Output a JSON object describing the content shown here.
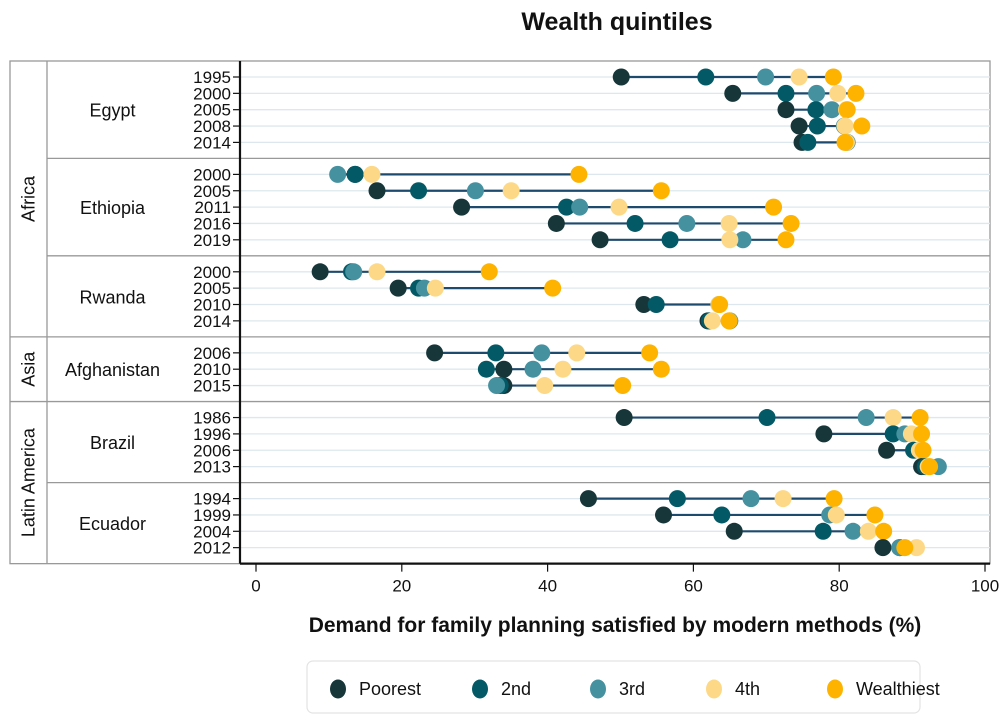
{
  "chart_data": {
    "type": "scatter",
    "subtype": "dumbbell",
    "title": "Wealth quintiles",
    "xlabel": "Demand for family planning satisfied by modern methods (%)",
    "ylabel": "",
    "xlim": [
      0,
      100
    ],
    "xticks": [
      0,
      20,
      40,
      60,
      80,
      100
    ],
    "grid": true,
    "legend_position": "bottom",
    "series_names": [
      "Poorest",
      "2nd",
      "3rd",
      "4th",
      "Wealthiest"
    ],
    "series_colors": [
      "#16363a",
      "#035a66",
      "#4591a0",
      "#fdd886",
      "#fdb300"
    ],
    "connector_color": "#1e4a6e",
    "regions": [
      {
        "name": "Africa",
        "countries": [
          {
            "name": "Egypt",
            "surveys": [
              {
                "year": "1995",
                "values": [
                  50.1,
                  61.7,
                  69.9,
                  74.5,
                  79.2
                ]
              },
              {
                "year": "2000",
                "values": [
                  65.4,
                  72.7,
                  76.9,
                  79.8,
                  82.3
                ]
              },
              {
                "year": "2005",
                "values": [
                  72.7,
                  76.8,
                  79.0,
                  81.0,
                  81.1
                ]
              },
              {
                "year": "2008",
                "values": [
                  74.5,
                  77.0,
                  80.7,
                  80.8,
                  83.1
                ]
              },
              {
                "year": "2014",
                "values": [
                  74.9,
                  75.7,
                  81.1,
                  81.0,
                  80.8
                ]
              }
            ]
          },
          {
            "name": "Ethiopia",
            "surveys": [
              {
                "year": "2000",
                "values": [
                  13.6,
                  13.6,
                  11.2,
                  15.9,
                  44.3
                ]
              },
              {
                "year": "2005",
                "values": [
                  16.6,
                  22.3,
                  30.1,
                  35.0,
                  55.6
                ]
              },
              {
                "year": "2011",
                "values": [
                  28.2,
                  42.6,
                  44.4,
                  49.8,
                  71.0
                ]
              },
              {
                "year": "2016",
                "values": [
                  41.2,
                  52.0,
                  59.1,
                  64.9,
                  73.4
                ]
              },
              {
                "year": "2019",
                "values": [
                  47.2,
                  56.8,
                  66.8,
                  65.0,
                  72.7
                ]
              }
            ]
          },
          {
            "name": "Rwanda",
            "surveys": [
              {
                "year": "2000",
                "values": [
                  8.8,
                  13.1,
                  13.4,
                  16.6,
                  32.0
                ]
              },
              {
                "year": "2005",
                "values": [
                  19.5,
                  22.3,
                  23.1,
                  24.6,
                  40.7
                ]
              },
              {
                "year": "2010",
                "values": [
                  53.2,
                  54.9,
                  63.5,
                  63.5,
                  63.6
                ]
              },
              {
                "year": "2014",
                "values": [
                  62.0,
                  62.2,
                  65.0,
                  62.6,
                  64.9
                ]
              }
            ]
          }
        ]
      },
      {
        "name": "Asia",
        "countries": [
          {
            "name": "Afghanistan",
            "surveys": [
              {
                "year": "2006",
                "values": [
                  24.5,
                  32.9,
                  39.2,
                  44.0,
                  54.0
                ]
              },
              {
                "year": "2010",
                "values": [
                  34.0,
                  31.6,
                  38.0,
                  42.1,
                  55.6
                ]
              },
              {
                "year": "2015",
                "values": [
                  34.0,
                  33.5,
                  33.0,
                  39.6,
                  50.3
                ]
              }
            ]
          }
        ]
      },
      {
        "name": "Latin America",
        "countries": [
          {
            "name": "Brazil",
            "surveys": [
              {
                "year": "1986",
                "values": [
                  50.5,
                  70.1,
                  83.7,
                  87.4,
                  91.1
                ]
              },
              {
                "year": "1996",
                "values": [
                  77.9,
                  87.4,
                  89.0,
                  89.9,
                  91.3
                ]
              },
              {
                "year": "2006",
                "values": [
                  86.5,
                  90.2,
                  91.0,
                  91.0,
                  91.5
                ]
              },
              {
                "year": "2013",
                "values": [
                  91.3,
                  91.8,
                  93.6,
                  92.2,
                  92.4
                ]
              }
            ]
          },
          {
            "name": "Ecuador",
            "surveys": [
              {
                "year": "1994",
                "values": [
                  45.6,
                  57.8,
                  67.9,
                  72.3,
                  79.3
                ]
              },
              {
                "year": "1999",
                "values": [
                  55.9,
                  63.9,
                  78.7,
                  79.6,
                  84.9
                ]
              },
              {
                "year": "2004",
                "values": [
                  65.6,
                  77.8,
                  81.9,
                  84.0,
                  86.1
                ]
              },
              {
                "year": "2012",
                "values": [
                  86.0,
                  88.3,
                  88.3,
                  90.6,
                  89.0
                ]
              }
            ]
          }
        ]
      }
    ]
  }
}
